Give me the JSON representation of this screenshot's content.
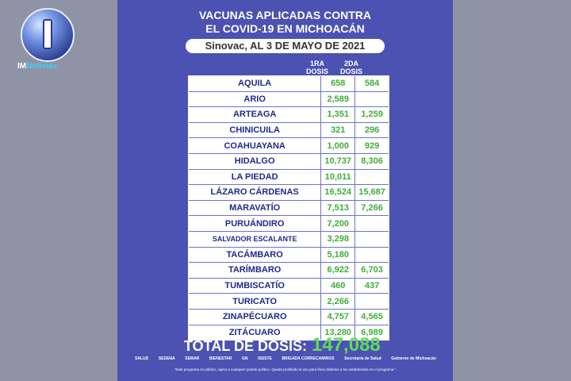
{
  "brand": {
    "logo_text_a": "IM",
    "logo_text_b": "Noticias"
  },
  "title": {
    "line1": "VACUNAS APLICADAS CONTRA",
    "line2": "EL COVID-19 EN MICHOACÁN"
  },
  "subtitle": "Sinovac, AL 3 DE MAYO DE 2021",
  "columns": {
    "dose1": "1RA\nDOSIS",
    "dose2": "2DA\nDOSIS"
  },
  "rows": [
    {
      "name": "AQUILA",
      "d1": "658",
      "d2": "584"
    },
    {
      "name": "ARIO",
      "d1": "2,589",
      "d2": ""
    },
    {
      "name": "ARTEAGA",
      "d1": "1,351",
      "d2": "1,259"
    },
    {
      "name": "CHINICUILA",
      "d1": "321",
      "d2": "296"
    },
    {
      "name": "COAHUAYANA",
      "d1": "1,000",
      "d2": "929"
    },
    {
      "name": "HIDALGO",
      "d1": "10,737",
      "d2": "8,306"
    },
    {
      "name": "LA PIEDAD",
      "d1": "10,011",
      "d2": ""
    },
    {
      "name": "LÁZARO CÁRDENAS",
      "d1": "16,524",
      "d2": "15,687"
    },
    {
      "name": "MARAVATÍO",
      "d1": "7,513",
      "d2": "7,266"
    },
    {
      "name": "PURUÁNDIRO",
      "d1": "7,200",
      "d2": ""
    },
    {
      "name": "SALVADOR ESCALANTE",
      "d1": "3,298",
      "d2": ""
    },
    {
      "name": "TACÁMBARO",
      "d1": "5,180",
      "d2": ""
    },
    {
      "name": "TARÍMBARO",
      "d1": "6,922",
      "d2": "6,703"
    },
    {
      "name": "TUMBISCATÍO",
      "d1": "460",
      "d2": "437"
    },
    {
      "name": "TURICATO",
      "d1": "2,266",
      "d2": ""
    },
    {
      "name": "ZINAPÉCUARO",
      "d1": "4,757",
      "d2": "4,565"
    },
    {
      "name": "ZITÁCUARO",
      "d1": "13,280",
      "d2": "6,989"
    }
  ],
  "total": {
    "label": "TOTAL DE DOSIS:",
    "value": "147,088"
  },
  "sponsors": [
    "SALUD",
    "SEDENA",
    "SEMAR",
    "BIENESTAR",
    "GN",
    "ISSSTE",
    "BRIGADA CORRECAMINOS",
    "Secretaría de Salud",
    "Gobierno de Michoacán"
  ],
  "disclaimer": "\"Este programa es público, ajeno a cualquier partido político. Queda prohibido el uso para fines distintos a los establecidos en el programa.\"",
  "colors": {
    "background": "#4b52b2",
    "green": "#3fae3b",
    "total_green": "#5fdc5a",
    "name_blue": "#1f2a8a"
  }
}
